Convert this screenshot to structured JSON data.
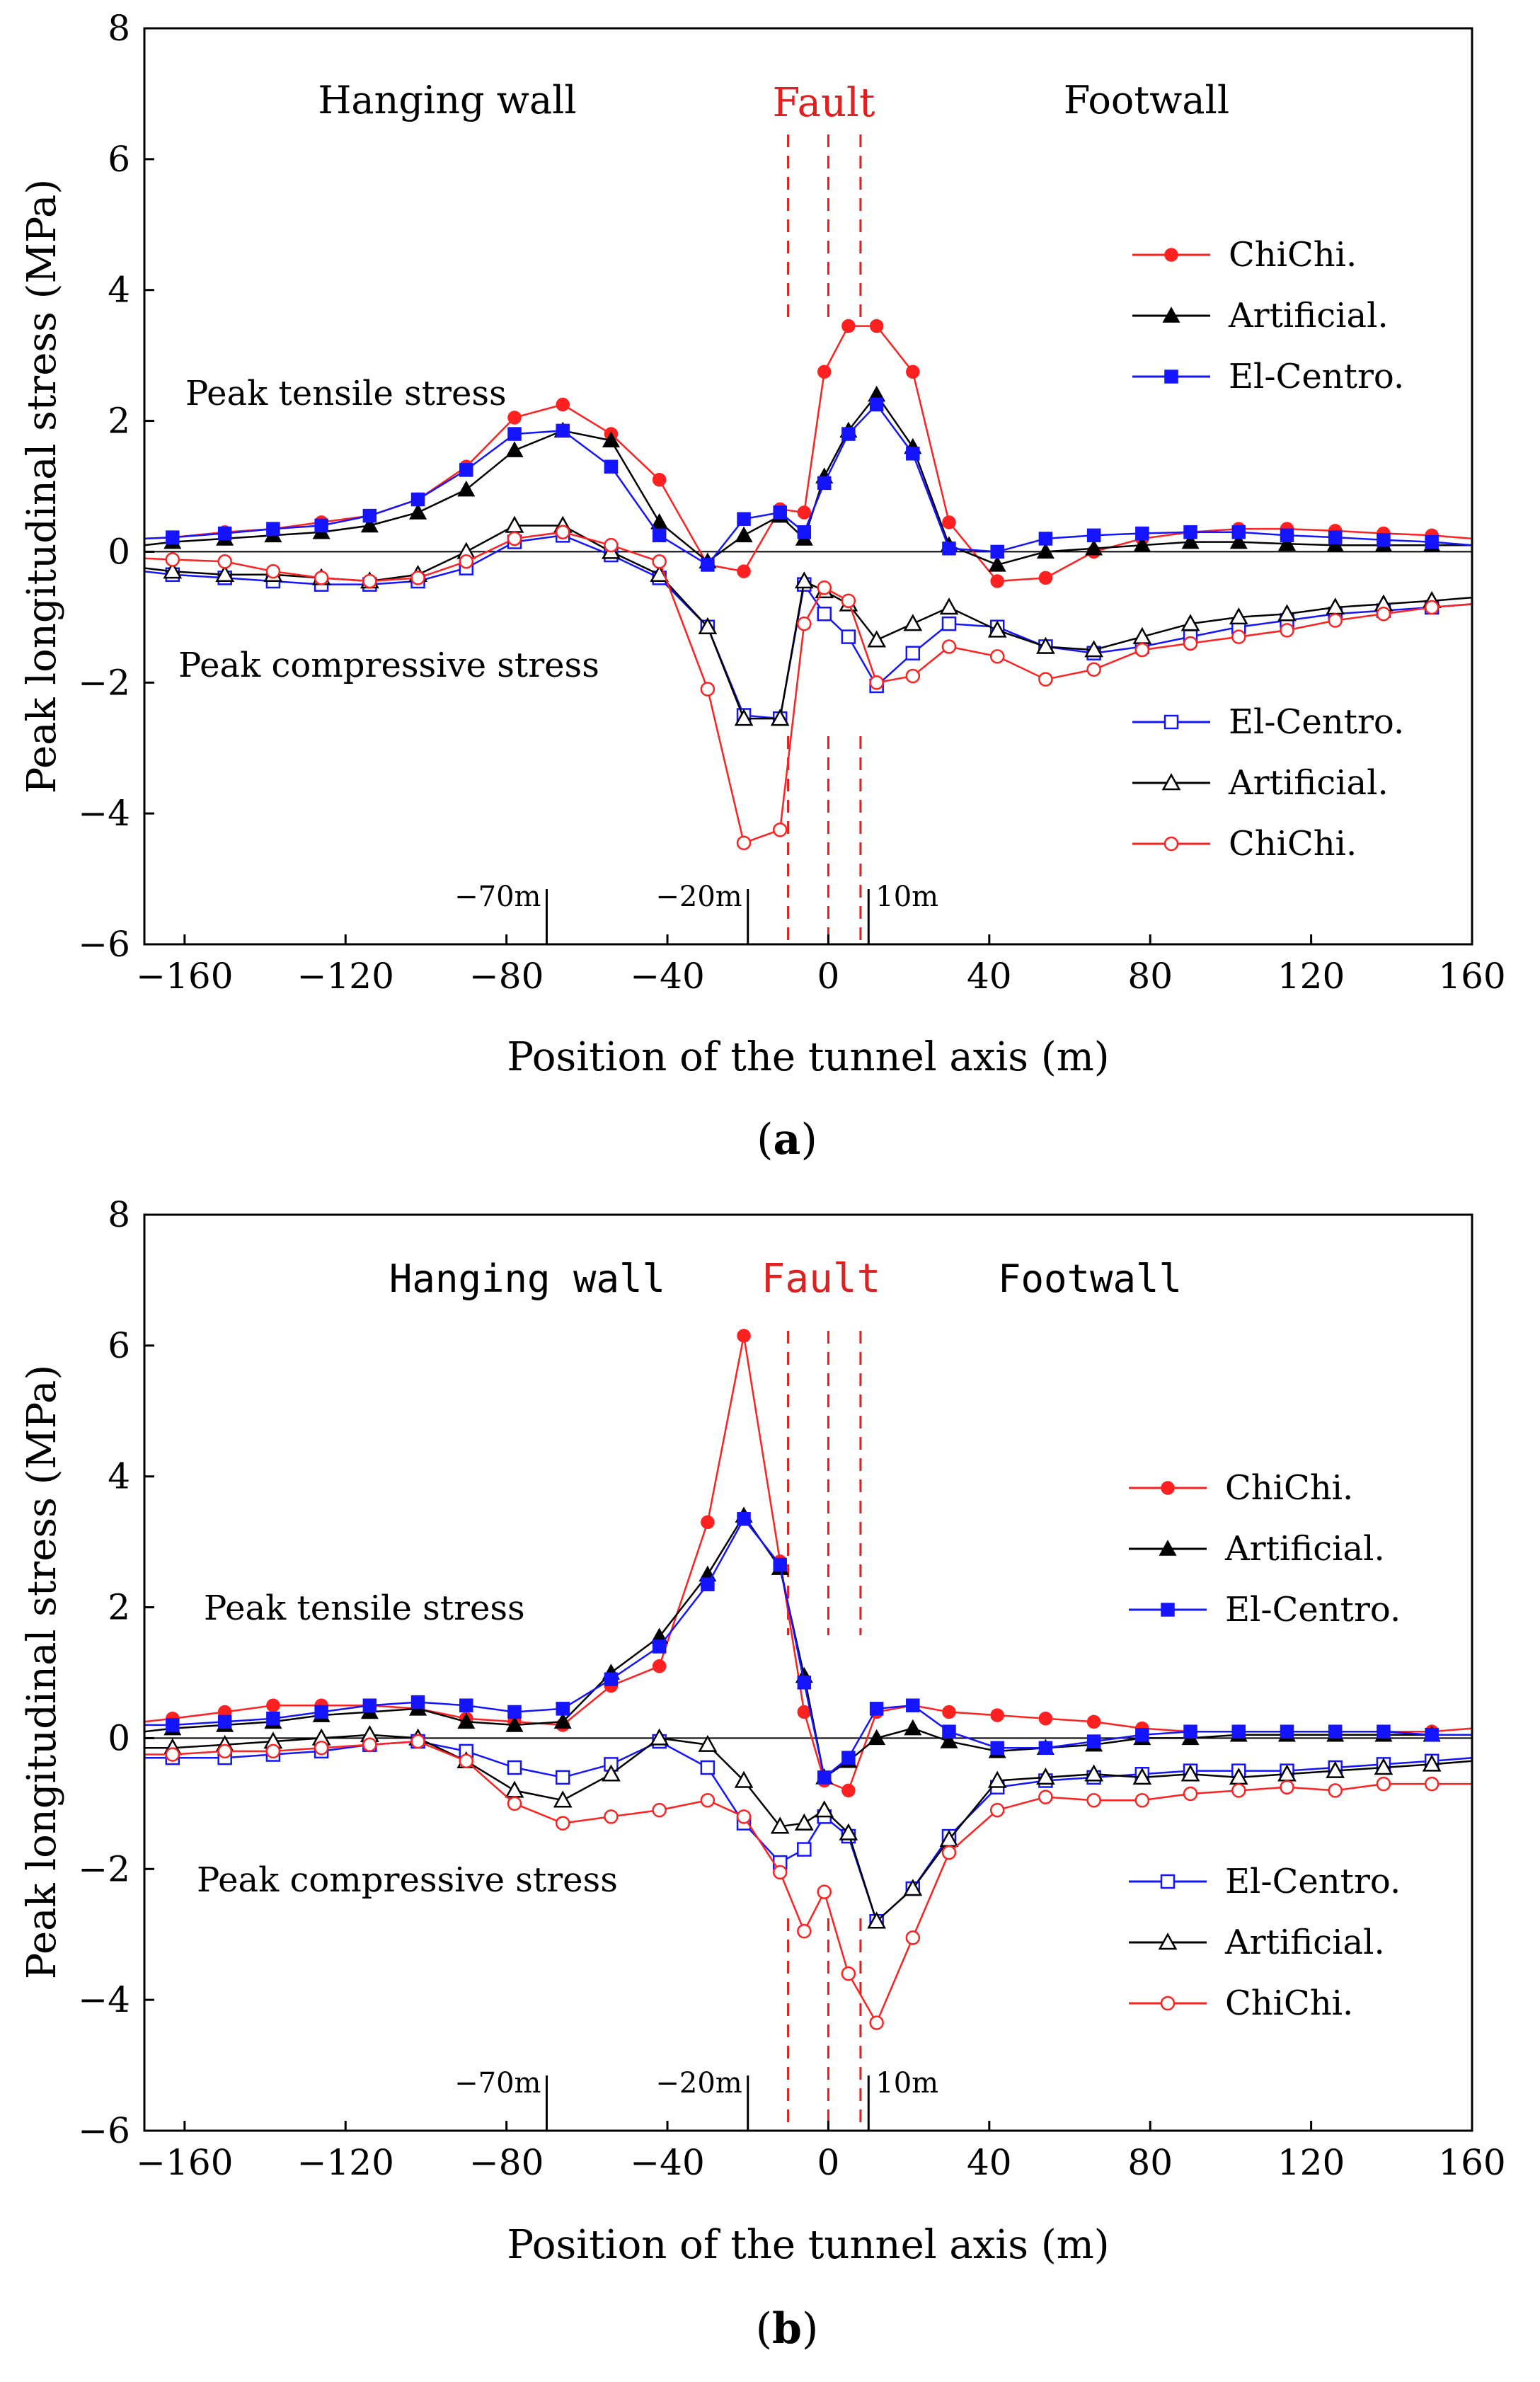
{
  "chart_data": [
    {
      "type": "line",
      "caption_open": "(",
      "caption_letter": "a",
      "caption_close": ")",
      "xlabel": "Position of the tunnel axis (m)",
      "ylabel": "Peak longitudinal stress (MPa)",
      "xlim": [
        -170,
        160
      ],
      "ylim": [
        -6,
        8
      ],
      "xticks": [
        -160,
        -120,
        -80,
        -40,
        0,
        40,
        80,
        120,
        160
      ],
      "yticks": [
        -6,
        -4,
        -2,
        0,
        2,
        4,
        6,
        8
      ],
      "x_tick_labels": [
        "−160",
        "−120",
        "−80",
        "−40",
        "0",
        "40",
        "80",
        "120",
        "160"
      ],
      "y_tick_labels": [
        "−6",
        "−4",
        "−2",
        "0",
        "2",
        "4",
        "6",
        "8"
      ],
      "zero_line": true,
      "region_labels": {
        "hanging": "Hanging wall",
        "fault": "Fault",
        "footwall": "Footwall"
      },
      "fault_lines_x": [
        -10,
        0,
        8
      ],
      "annotations": {
        "tensile": "Peak tensile stress",
        "compressive": "Peak compressive stress"
      },
      "position_markers": [
        {
          "x": -70,
          "label": "−70m"
        },
        {
          "x": -20,
          "label": "−20m"
        },
        {
          "x": 10,
          "label": "10m"
        }
      ],
      "legend_tensile": [
        "ChiChi.",
        "Artificial.",
        "El-Centro."
      ],
      "legend_compressive": [
        "El-Centro.",
        "Artificial.",
        "ChiChi."
      ],
      "colors": {
        "chichi": "#ff2020",
        "artificial": "#000000",
        "elcentro": "#1414ff",
        "fault": "#e02020"
      },
      "x": [
        -170,
        -163,
        -150,
        -138,
        -126,
        -114,
        -102,
        -90,
        -78,
        -66,
        -54,
        -42,
        -30,
        -21,
        -12,
        -6,
        -1,
        5,
        12,
        21,
        30,
        42,
        54,
        66,
        78,
        90,
        102,
        114,
        126,
        138,
        150,
        160
      ],
      "series": [
        {
          "name": "ChiChi.",
          "kind": "tensile",
          "marker": "circle-filled",
          "values": [
            0.2,
            0.22,
            0.3,
            0.35,
            0.45,
            0.55,
            0.8,
            1.3,
            2.05,
            2.25,
            1.8,
            1.1,
            -0.2,
            -0.3,
            0.65,
            0.6,
            2.75,
            3.45,
            3.45,
            2.75,
            0.45,
            -0.45,
            -0.4,
            0.0,
            0.2,
            0.3,
            0.35,
            0.35,
            0.32,
            0.28,
            0.25,
            0.2
          ]
        },
        {
          "name": "Artificial.",
          "kind": "tensile",
          "marker": "triangle-filled",
          "values": [
            0.1,
            0.15,
            0.2,
            0.25,
            0.3,
            0.4,
            0.6,
            0.95,
            1.55,
            1.85,
            1.7,
            0.45,
            -0.15,
            0.25,
            0.55,
            0.2,
            1.15,
            1.85,
            2.4,
            1.6,
            0.1,
            -0.2,
            0.0,
            0.05,
            0.1,
            0.15,
            0.15,
            0.12,
            0.1,
            0.1,
            0.1,
            0.1
          ]
        },
        {
          "name": "El-Centro.",
          "kind": "tensile",
          "marker": "square-filled",
          "values": [
            0.2,
            0.22,
            0.28,
            0.35,
            0.4,
            0.55,
            0.8,
            1.25,
            1.8,
            1.85,
            1.3,
            0.25,
            -0.2,
            0.5,
            0.6,
            0.3,
            1.05,
            1.8,
            2.25,
            1.5,
            0.05,
            0.0,
            0.2,
            0.25,
            0.28,
            0.3,
            0.3,
            0.25,
            0.22,
            0.18,
            0.15,
            0.1
          ]
        },
        {
          "name": "El-Centro.",
          "kind": "compressive",
          "marker": "square-open",
          "values": [
            -0.3,
            -0.35,
            -0.4,
            -0.45,
            -0.5,
            -0.5,
            -0.45,
            -0.25,
            0.15,
            0.25,
            -0.05,
            -0.4,
            -1.15,
            -2.5,
            -2.55,
            -0.5,
            -0.95,
            -1.3,
            -2.05,
            -1.55,
            -1.1,
            -1.15,
            -1.45,
            -1.55,
            -1.45,
            -1.3,
            -1.15,
            -1.05,
            -0.95,
            -0.9,
            -0.85,
            -0.8
          ]
        },
        {
          "name": "Artificial.",
          "kind": "compressive",
          "marker": "triangle-open",
          "values": [
            -0.25,
            -0.3,
            -0.35,
            -0.35,
            -0.4,
            -0.45,
            -0.35,
            0.0,
            0.4,
            0.4,
            0.0,
            -0.35,
            -1.15,
            -2.55,
            -2.55,
            -0.45,
            -0.6,
            -0.8,
            -1.35,
            -1.1,
            -0.85,
            -1.2,
            -1.45,
            -1.5,
            -1.3,
            -1.1,
            -1.0,
            -0.95,
            -0.85,
            -0.8,
            -0.75,
            -0.7
          ]
        },
        {
          "name": "ChiChi.",
          "kind": "compressive",
          "marker": "circle-open",
          "values": [
            -0.1,
            -0.12,
            -0.15,
            -0.3,
            -0.4,
            -0.45,
            -0.4,
            -0.15,
            0.2,
            0.3,
            0.1,
            -0.15,
            -2.1,
            -4.45,
            -4.25,
            -1.1,
            -0.55,
            -0.75,
            -2.0,
            -1.9,
            -1.45,
            -1.6,
            -1.95,
            -1.8,
            -1.5,
            -1.4,
            -1.3,
            -1.2,
            -1.05,
            -0.95,
            -0.85,
            -0.8
          ]
        }
      ]
    },
    {
      "type": "line",
      "caption_open": "(",
      "caption_letter": "b",
      "caption_close": ")",
      "xlabel": "Position of the tunnel axis (m)",
      "ylabel": "Peak longitudinal stress (MPa)",
      "xlim": [
        -170,
        160
      ],
      "ylim": [
        -6,
        8
      ],
      "xticks": [
        -160,
        -120,
        -80,
        -40,
        0,
        40,
        80,
        120,
        160
      ],
      "yticks": [
        -6,
        -4,
        -2,
        0,
        2,
        4,
        6,
        8
      ],
      "x_tick_labels": [
        "−160",
        "−120",
        "−80",
        "−40",
        "0",
        "40",
        "80",
        "120",
        "160"
      ],
      "y_tick_labels": [
        "−6",
        "−4",
        "−2",
        "0",
        "2",
        "4",
        "6",
        "8"
      ],
      "zero_line": true,
      "region_labels": {
        "hanging": "Hanging wall",
        "fault": "Fault",
        "footwall": "Footwall"
      },
      "fault_lines_x": [
        -10,
        0,
        8
      ],
      "annotations": {
        "tensile": "Peak tensile stress",
        "compressive": "Peak compressive stress"
      },
      "position_markers": [
        {
          "x": -70,
          "label": "−70m"
        },
        {
          "x": -20,
          "label": "−20m"
        },
        {
          "x": 10,
          "label": "10m"
        }
      ],
      "legend_tensile": [
        "ChiChi.",
        "Artificial.",
        "El-Centro."
      ],
      "legend_compressive": [
        "El-Centro.",
        "Artificial.",
        "ChiChi."
      ],
      "colors": {
        "chichi": "#ff2020",
        "artificial": "#000000",
        "elcentro": "#1414ff",
        "fault": "#e02020"
      },
      "x": [
        -170,
        -163,
        -150,
        -138,
        -126,
        -114,
        -102,
        -90,
        -78,
        -66,
        -54,
        -42,
        -30,
        -21,
        -12,
        -6,
        -1,
        5,
        12,
        21,
        30,
        42,
        54,
        66,
        78,
        90,
        102,
        114,
        126,
        138,
        150,
        160
      ],
      "series": [
        {
          "name": "ChiChi.",
          "kind": "tensile",
          "marker": "circle-filled",
          "values": [
            0.25,
            0.3,
            0.4,
            0.5,
            0.5,
            0.5,
            0.45,
            0.3,
            0.25,
            0.2,
            0.8,
            1.1,
            3.3,
            6.15,
            2.7,
            0.4,
            -0.65,
            -0.8,
            0.4,
            0.5,
            0.4,
            0.35,
            0.3,
            0.25,
            0.15,
            0.1,
            0.1,
            0.1,
            0.1,
            0.1,
            0.1,
            0.15
          ]
        },
        {
          "name": "Artificial.",
          "kind": "tensile",
          "marker": "triangle-filled",
          "values": [
            0.1,
            0.15,
            0.2,
            0.25,
            0.35,
            0.4,
            0.45,
            0.25,
            0.2,
            0.25,
            1.0,
            1.55,
            2.5,
            3.4,
            2.6,
            0.95,
            -0.6,
            -0.35,
            0.0,
            0.15,
            -0.05,
            -0.2,
            -0.15,
            -0.1,
            0.0,
            0.0,
            0.05,
            0.05,
            0.05,
            0.05,
            0.05,
            0.05
          ]
        },
        {
          "name": "El-Centro.",
          "kind": "tensile",
          "marker": "square-filled",
          "values": [
            0.2,
            0.2,
            0.25,
            0.3,
            0.4,
            0.5,
            0.55,
            0.5,
            0.4,
            0.45,
            0.9,
            1.4,
            2.35,
            3.35,
            2.65,
            0.85,
            -0.6,
            -0.3,
            0.45,
            0.5,
            0.1,
            -0.15,
            -0.15,
            -0.05,
            0.05,
            0.1,
            0.1,
            0.1,
            0.1,
            0.1,
            0.05,
            0.05
          ]
        },
        {
          "name": "El-Centro.",
          "kind": "compressive",
          "marker": "square-open",
          "values": [
            -0.3,
            -0.3,
            -0.3,
            -0.25,
            -0.2,
            -0.1,
            -0.05,
            -0.2,
            -0.45,
            -0.6,
            -0.4,
            -0.05,
            -0.45,
            -1.3,
            -1.9,
            -1.7,
            -1.2,
            -1.5,
            -2.8,
            -2.3,
            -1.5,
            -0.75,
            -0.65,
            -0.6,
            -0.55,
            -0.5,
            -0.5,
            -0.5,
            -0.45,
            -0.4,
            -0.35,
            -0.3
          ]
        },
        {
          "name": "Artificial.",
          "kind": "compressive",
          "marker": "triangle-open",
          "values": [
            -0.15,
            -0.15,
            -0.1,
            -0.05,
            0.0,
            0.05,
            0.0,
            -0.35,
            -0.8,
            -0.95,
            -0.55,
            0.0,
            -0.1,
            -0.65,
            -1.35,
            -1.3,
            -1.1,
            -1.45,
            -2.8,
            -2.3,
            -1.55,
            -0.65,
            -0.6,
            -0.55,
            -0.6,
            -0.55,
            -0.6,
            -0.55,
            -0.5,
            -0.45,
            -0.4,
            -0.35
          ]
        },
        {
          "name": "ChiChi.",
          "kind": "compressive",
          "marker": "circle-open",
          "values": [
            -0.25,
            -0.25,
            -0.2,
            -0.2,
            -0.15,
            -0.1,
            -0.05,
            -0.35,
            -1.0,
            -1.3,
            -1.2,
            -1.1,
            -0.95,
            -1.2,
            -2.05,
            -2.95,
            -2.35,
            -3.6,
            -4.35,
            -3.05,
            -1.75,
            -1.1,
            -0.9,
            -0.95,
            -0.95,
            -0.85,
            -0.8,
            -0.75,
            -0.8,
            -0.7,
            -0.7,
            -0.7
          ]
        }
      ]
    }
  ]
}
